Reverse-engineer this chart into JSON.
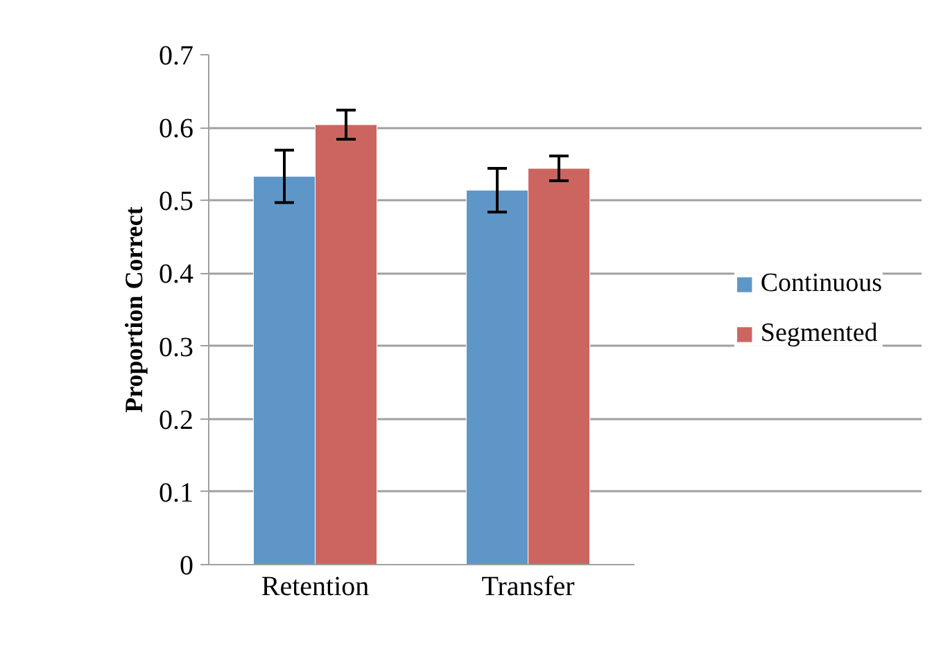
{
  "chart_data": {
    "type": "bar",
    "ylabel": "Proportion Correct",
    "categories": [
      "Retention",
      "Transfer"
    ],
    "series": [
      {
        "name": "Continuous",
        "color": "#5f96c8",
        "values": [
          0.533,
          0.514
        ],
        "errors": [
          0.036,
          0.03
        ]
      },
      {
        "name": "Segmented",
        "color": "#cc6560",
        "values": [
          0.604,
          0.544
        ],
        "errors": [
          0.02,
          0.017
        ]
      }
    ],
    "ylim": [
      0,
      0.7
    ],
    "yticks": [
      0,
      0.1,
      0.2,
      0.3,
      0.4,
      0.5,
      0.6,
      0.7
    ],
    "grid": "y",
    "legend": "right"
  }
}
